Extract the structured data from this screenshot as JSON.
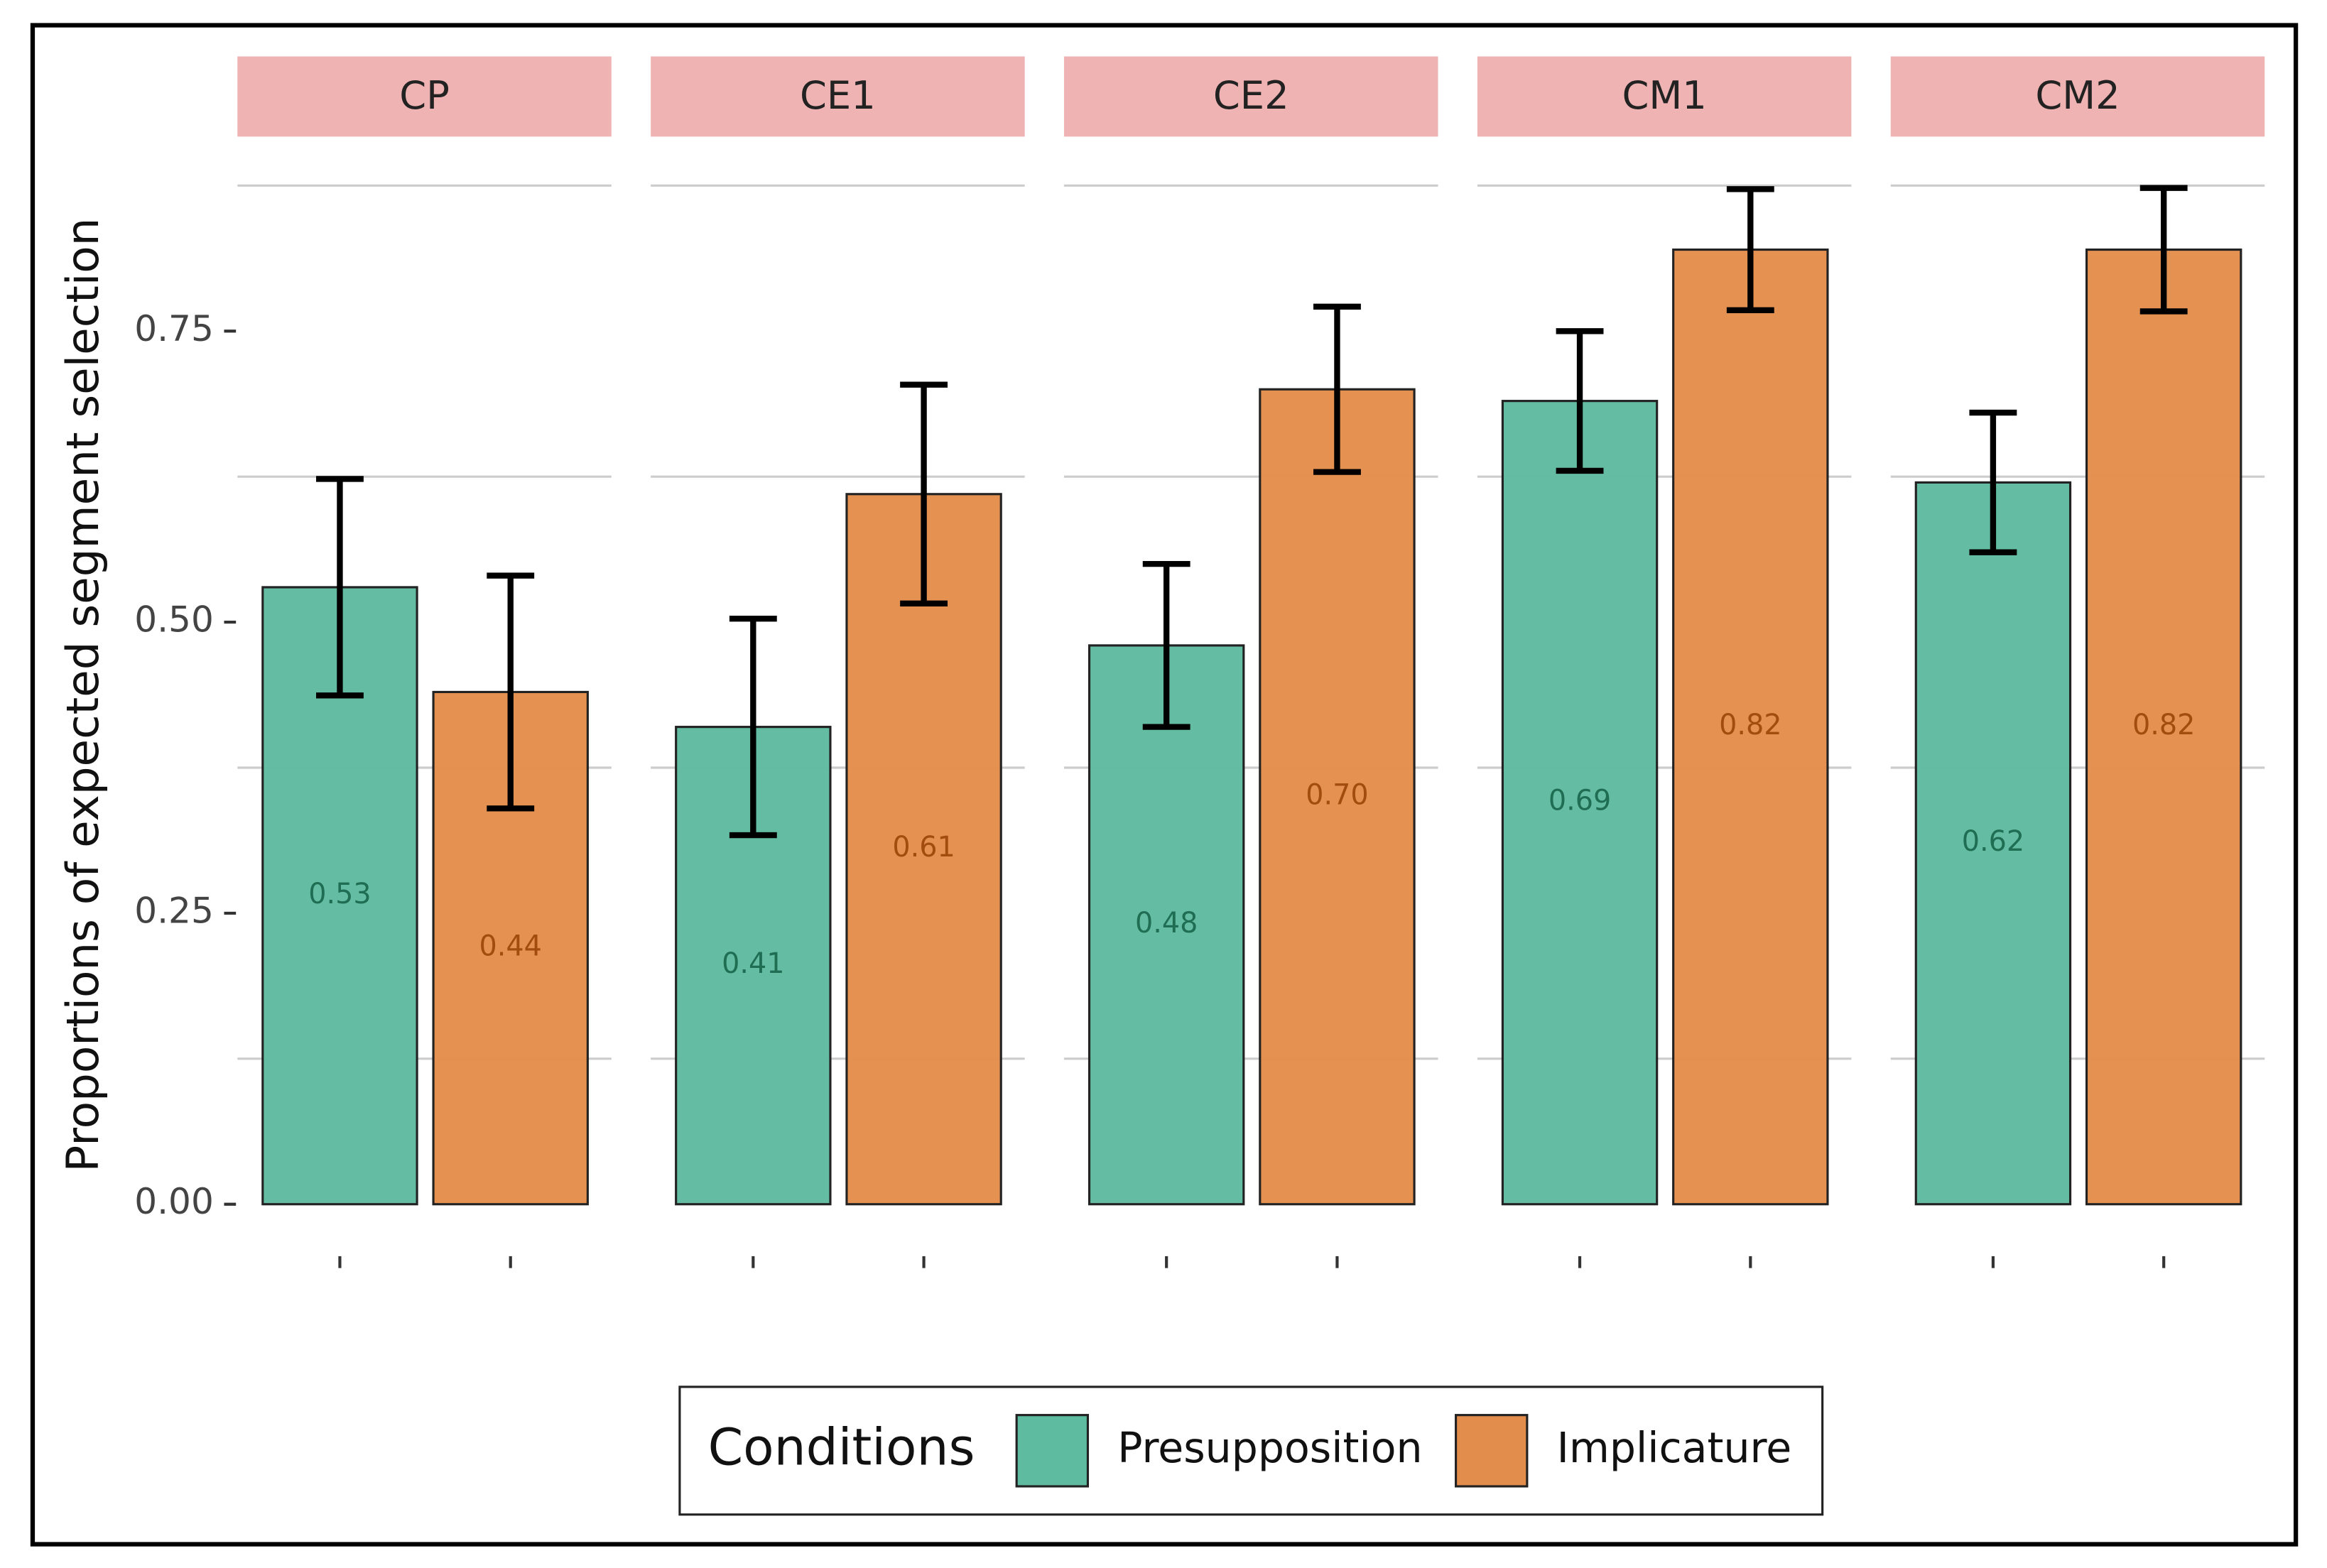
{
  "chart_data": {
    "type": "faceted-bar",
    "y_label": "Proportions of expected segment selection",
    "facets": [
      "CP",
      "CE1",
      "CE2",
      "CM1",
      "CM2"
    ],
    "series": [
      {
        "name": "Presupposition",
        "color": "#5fbb9f",
        "values": [
          0.53,
          0.41,
          0.48,
          0.69,
          0.62
        ],
        "value_labels": [
          "0.53",
          "0.41",
          "0.48",
          "0.69",
          "0.62"
        ],
        "errors": [
          0.093,
          0.093,
          0.07,
          0.06,
          0.06
        ]
      },
      {
        "name": "Implicature",
        "color": "#e38d4c",
        "values": [
          0.44,
          0.61,
          0.7,
          0.82,
          0.82
        ],
        "value_labels": [
          "0.44",
          "0.61",
          "0.70",
          "0.82",
          "0.82"
        ],
        "errors": [
          0.1,
          0.094,
          0.071,
          0.052,
          0.053
        ]
      }
    ],
    "legend_title": "Conditions",
    "legend_position": "bottom",
    "ylim": [
      0,
      0.875
    ],
    "yticks": [
      {
        "value": 0,
        "label": "0.00"
      },
      {
        "value": 0.25,
        "label": "0.25"
      },
      {
        "value": 0.5,
        "label": "0.50"
      },
      {
        "value": 0.75,
        "label": "0.75"
      }
    ],
    "grid_lines": [
      0.125,
      0.375,
      0.625,
      0.875
    ],
    "strip_color": "#efb3b3"
  }
}
